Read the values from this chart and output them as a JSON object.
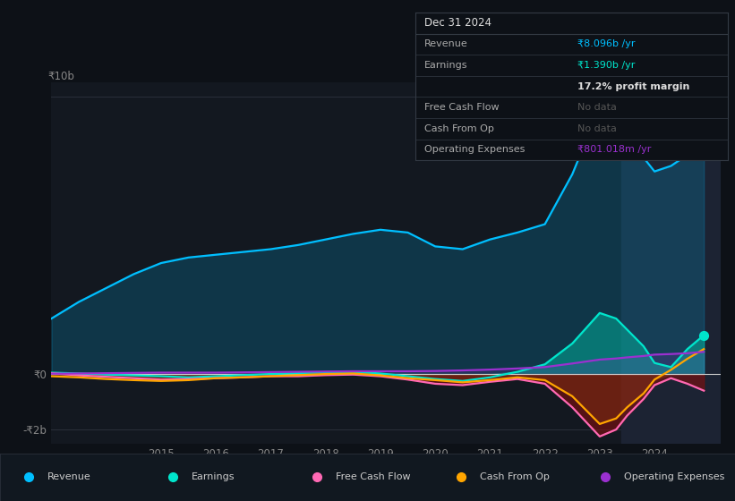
{
  "background_color": "#0d1117",
  "plot_bg_color": "#131820",
  "years": [
    2013.0,
    2013.5,
    2014.0,
    2014.5,
    2015.0,
    2015.5,
    2016.0,
    2016.5,
    2017.0,
    2017.5,
    2018.0,
    2018.5,
    2019.0,
    2019.5,
    2020.0,
    2020.5,
    2021.0,
    2021.5,
    2022.0,
    2022.5,
    2023.0,
    2023.3,
    2023.5,
    2023.8,
    2024.0,
    2024.3,
    2024.6,
    2024.9
  ],
  "revenue": [
    2.0,
    2.6,
    3.1,
    3.6,
    4.0,
    4.2,
    4.3,
    4.4,
    4.5,
    4.65,
    4.85,
    5.05,
    5.2,
    5.1,
    4.6,
    4.5,
    4.85,
    5.1,
    5.4,
    7.2,
    9.6,
    9.2,
    8.5,
    7.8,
    7.3,
    7.5,
    7.9,
    8.1
  ],
  "earnings": [
    0.05,
    0.02,
    -0.02,
    -0.05,
    -0.08,
    -0.12,
    -0.08,
    -0.04,
    0.0,
    0.03,
    0.07,
    0.08,
    0.02,
    -0.08,
    -0.18,
    -0.25,
    -0.12,
    0.08,
    0.35,
    1.1,
    2.2,
    2.0,
    1.6,
    1.0,
    0.4,
    0.25,
    0.9,
    1.4
  ],
  "free_cash_flow": [
    0.03,
    -0.05,
    -0.1,
    -0.15,
    -0.2,
    -0.18,
    -0.15,
    -0.12,
    -0.08,
    -0.08,
    -0.04,
    -0.02,
    -0.08,
    -0.2,
    -0.35,
    -0.4,
    -0.28,
    -0.18,
    -0.35,
    -1.2,
    -2.25,
    -2.0,
    -1.5,
    -0.9,
    -0.4,
    -0.15,
    -0.35,
    -0.6
  ],
  "cash_from_op": [
    -0.08,
    -0.12,
    -0.18,
    -0.22,
    -0.25,
    -0.22,
    -0.15,
    -0.12,
    -0.08,
    -0.04,
    0.0,
    0.02,
    -0.05,
    -0.15,
    -0.22,
    -0.3,
    -0.22,
    -0.12,
    -0.22,
    -0.8,
    -1.8,
    -1.6,
    -1.2,
    -0.7,
    -0.2,
    0.15,
    0.55,
    0.9
  ],
  "operating_expenses": [
    0.01,
    0.02,
    0.03,
    0.04,
    0.05,
    0.05,
    0.05,
    0.06,
    0.07,
    0.08,
    0.09,
    0.1,
    0.1,
    0.1,
    0.11,
    0.13,
    0.16,
    0.2,
    0.25,
    0.38,
    0.52,
    0.56,
    0.6,
    0.65,
    0.7,
    0.72,
    0.75,
    0.8
  ],
  "revenue_color": "#00bfff",
  "earnings_color": "#00e5cc",
  "free_cash_flow_color": "#ff69b4",
  "cash_from_op_color": "#ffa500",
  "operating_expenses_color": "#9b30d0",
  "revenue_fill_color": "#00bfff",
  "earnings_fill_color": "#00c4a8",
  "fcf_neg_fill_color": "#7a1010",
  "cfo_neg_fill_color": "#ff8c00",
  "opex_fill_color": "#9b30d0",
  "ylim_min": -2.5,
  "ylim_max": 10.5,
  "xlim_min": 2013.0,
  "xlim_max": 2025.2,
  "xticks": [
    2015,
    2016,
    2017,
    2018,
    2019,
    2020,
    2021,
    2022,
    2023,
    2024
  ],
  "grid_color": "#2a2f3a",
  "zero_line_color": "#cccccc",
  "highlight_x_start": 2023.4,
  "highlight_color": "#1c2333",
  "info_box": {
    "date": "Dec 31 2024",
    "rows": [
      {
        "label": "Revenue",
        "value": "₹8.096b /yr",
        "value_color": "#00bfff",
        "label_color": "#aaaaaa"
      },
      {
        "label": "Earnings",
        "value": "₹1.390b /yr",
        "value_color": "#00e5cc",
        "label_color": "#aaaaaa"
      },
      {
        "label": "",
        "value": "17.2% profit margin",
        "value_color": "#dddddd",
        "label_color": "#aaaaaa",
        "bold_value": true
      },
      {
        "label": "Free Cash Flow",
        "value": "No data",
        "value_color": "#555555",
        "label_color": "#aaaaaa"
      },
      {
        "label": "Cash From Op",
        "value": "No data",
        "value_color": "#555555",
        "label_color": "#aaaaaa"
      },
      {
        "label": "Operating Expenses",
        "value": "₹801.018m /yr",
        "value_color": "#9b30d0",
        "label_color": "#aaaaaa"
      }
    ]
  },
  "legend_items": [
    {
      "label": "Revenue",
      "color": "#00bfff"
    },
    {
      "label": "Earnings",
      "color": "#00e5cc"
    },
    {
      "label": "Free Cash Flow",
      "color": "#ff69b4"
    },
    {
      "label": "Cash From Op",
      "color": "#ffa500"
    },
    {
      "label": "Operating Expenses",
      "color": "#9b30d0"
    }
  ]
}
